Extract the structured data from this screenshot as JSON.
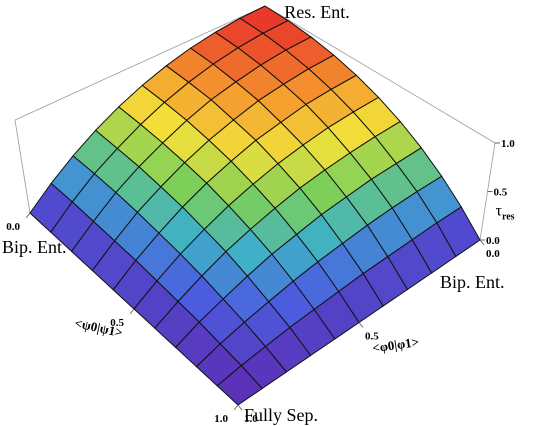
{
  "chart_data": {
    "type": "surface",
    "x_label": "<ψ0|ψ1>",
    "y_label": "<φ0|φ1>",
    "z_label": "τ",
    "z_label_sub": "res",
    "annotations": [
      {
        "text": "Res. Ent.",
        "x": 0,
        "y": 0
      },
      {
        "text": "Bip. Ent.",
        "x": 0,
        "y": 1
      },
      {
        "text": "Bip. Ent.",
        "x": 1,
        "y": 0
      },
      {
        "text": "Fully Sep.",
        "x": 1,
        "y": 1
      }
    ],
    "xlim": [
      0,
      1
    ],
    "ylim": [
      0,
      1
    ],
    "zlim": [
      0,
      1
    ],
    "xticks": [
      {
        "value": 0,
        "label": "0.0"
      },
      0.5,
      {
        "value": 1,
        "label": "1.0"
      }
    ],
    "yticks": [
      {
        "value": 0,
        "label": "0.0"
      },
      0.5,
      {
        "value": 1,
        "label": "1.0"
      }
    ],
    "zticks": [
      {
        "value": 0,
        "label": "0.0"
      },
      0.5,
      {
        "value": 1,
        "label": "1.0"
      }
    ],
    "colormap": [
      "#5b2fb5",
      "#4a5fe0",
      "#3fb0c8",
      "#7bcf5a",
      "#f2e03a",
      "#f59a2e",
      "#e8332a"
    ],
    "x": [
      0,
      0.1,
      0.2,
      0.3,
      0.4,
      0.5,
      0.6,
      0.7,
      0.8,
      0.9,
      1
    ],
    "y": [
      0,
      0.1,
      0.2,
      0.3,
      0.4,
      0.5,
      0.6,
      0.7,
      0.8,
      0.9,
      1
    ],
    "z": [
      [
        1,
        0.99,
        0.96,
        0.91,
        0.84,
        0.75,
        0.64,
        0.51,
        0.36,
        0.19,
        0
      ],
      [
        0.99,
        0.98,
        0.95,
        0.9,
        0.83,
        0.74,
        0.63,
        0.5,
        0.36,
        0.19,
        0
      ],
      [
        0.96,
        0.95,
        0.92,
        0.87,
        0.81,
        0.72,
        0.61,
        0.49,
        0.35,
        0.18,
        0
      ],
      [
        0.91,
        0.9,
        0.87,
        0.83,
        0.76,
        0.68,
        0.58,
        0.46,
        0.33,
        0.17,
        0
      ],
      [
        0.84,
        0.83,
        0.81,
        0.76,
        0.71,
        0.63,
        0.54,
        0.43,
        0.3,
        0.16,
        0
      ],
      [
        0.75,
        0.74,
        0.72,
        0.68,
        0.63,
        0.56,
        0.48,
        0.38,
        0.27,
        0.14,
        0
      ],
      [
        0.64,
        0.63,
        0.61,
        0.58,
        0.54,
        0.48,
        0.41,
        0.33,
        0.23,
        0.12,
        0
      ],
      [
        0.51,
        0.5,
        0.49,
        0.46,
        0.43,
        0.38,
        0.33,
        0.26,
        0.18,
        0.1,
        0
      ],
      [
        0.36,
        0.36,
        0.35,
        0.33,
        0.3,
        0.27,
        0.23,
        0.18,
        0.13,
        0.07,
        0
      ],
      [
        0.19,
        0.19,
        0.18,
        0.17,
        0.16,
        0.14,
        0.12,
        0.1,
        0.07,
        0.04,
        0
      ],
      [
        0,
        0,
        0,
        0,
        0,
        0,
        0,
        0,
        0,
        0,
        0
      ]
    ]
  }
}
